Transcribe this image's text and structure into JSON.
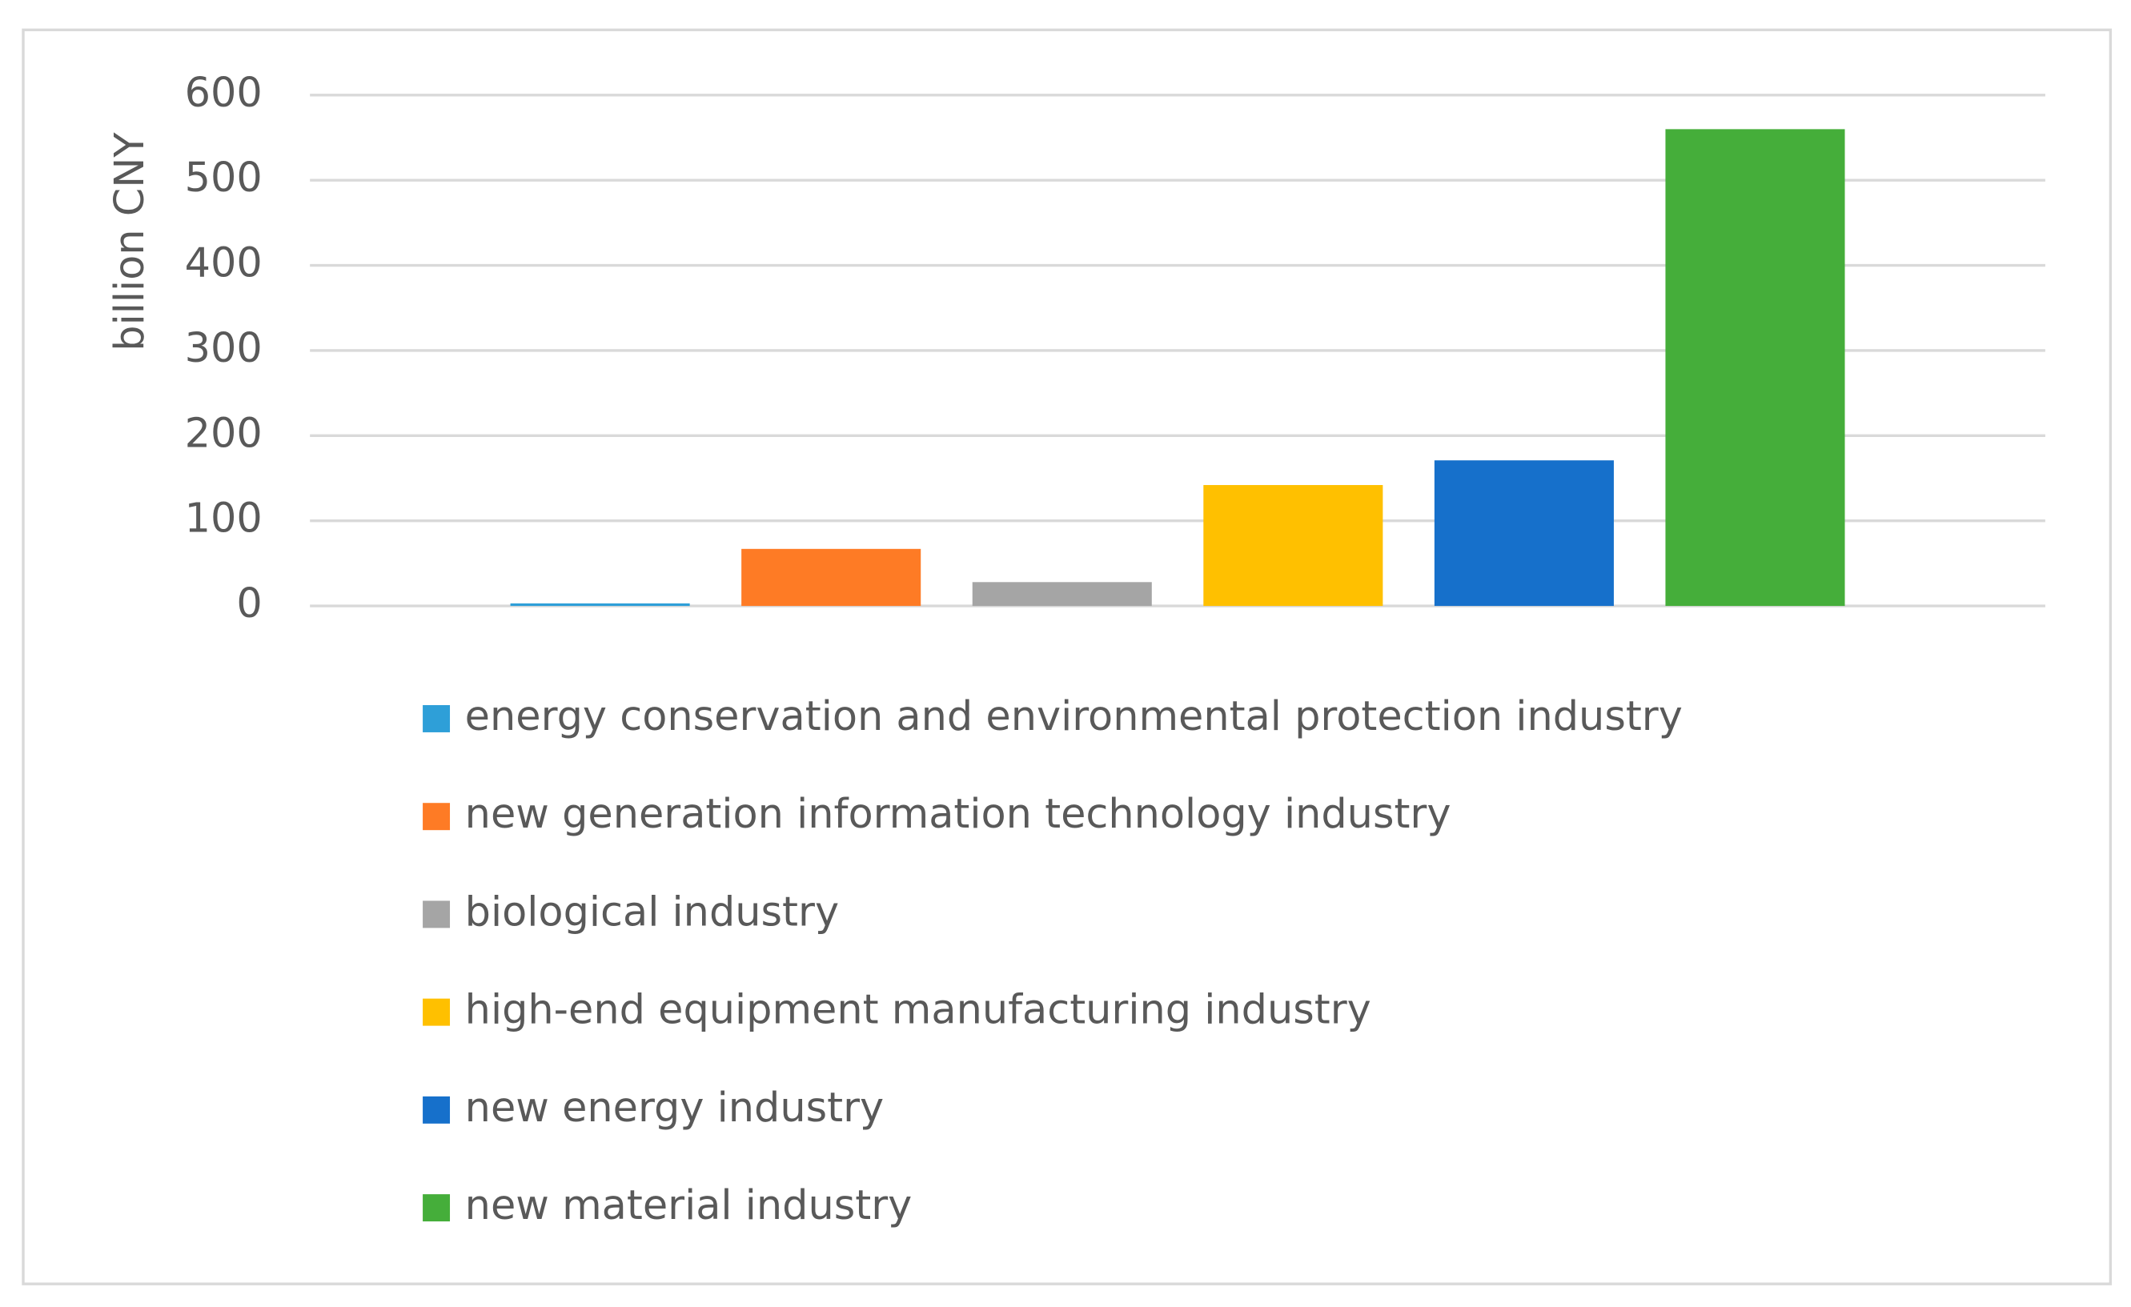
{
  "chart_data": {
    "type": "bar",
    "y_label": "billion CNY",
    "categories": [
      null
    ],
    "series": [
      {
        "name": "energy conservation and environmental protection industry",
        "color": "#2e9fd8",
        "values": [
          3
        ]
      },
      {
        "name": "new generation information technology industry",
        "color": "#fe7b25",
        "values": [
          67
        ]
      },
      {
        "name": "biological industry",
        "color": "#a5a5a5",
        "values": [
          28
        ]
      },
      {
        "name": "high-end equipment manufacturing industry",
        "color": "#ffc000",
        "values": [
          142
        ]
      },
      {
        "name": "new energy industry",
        "color": "#1670cb",
        "values": [
          171
        ]
      },
      {
        "name": "new material industry",
        "color": "#45ae3a",
        "values": [
          560
        ]
      }
    ],
    "ylim": [
      0,
      600
    ],
    "yticks": [
      0,
      100,
      200,
      300,
      400,
      500,
      600
    ],
    "grid": true
  }
}
